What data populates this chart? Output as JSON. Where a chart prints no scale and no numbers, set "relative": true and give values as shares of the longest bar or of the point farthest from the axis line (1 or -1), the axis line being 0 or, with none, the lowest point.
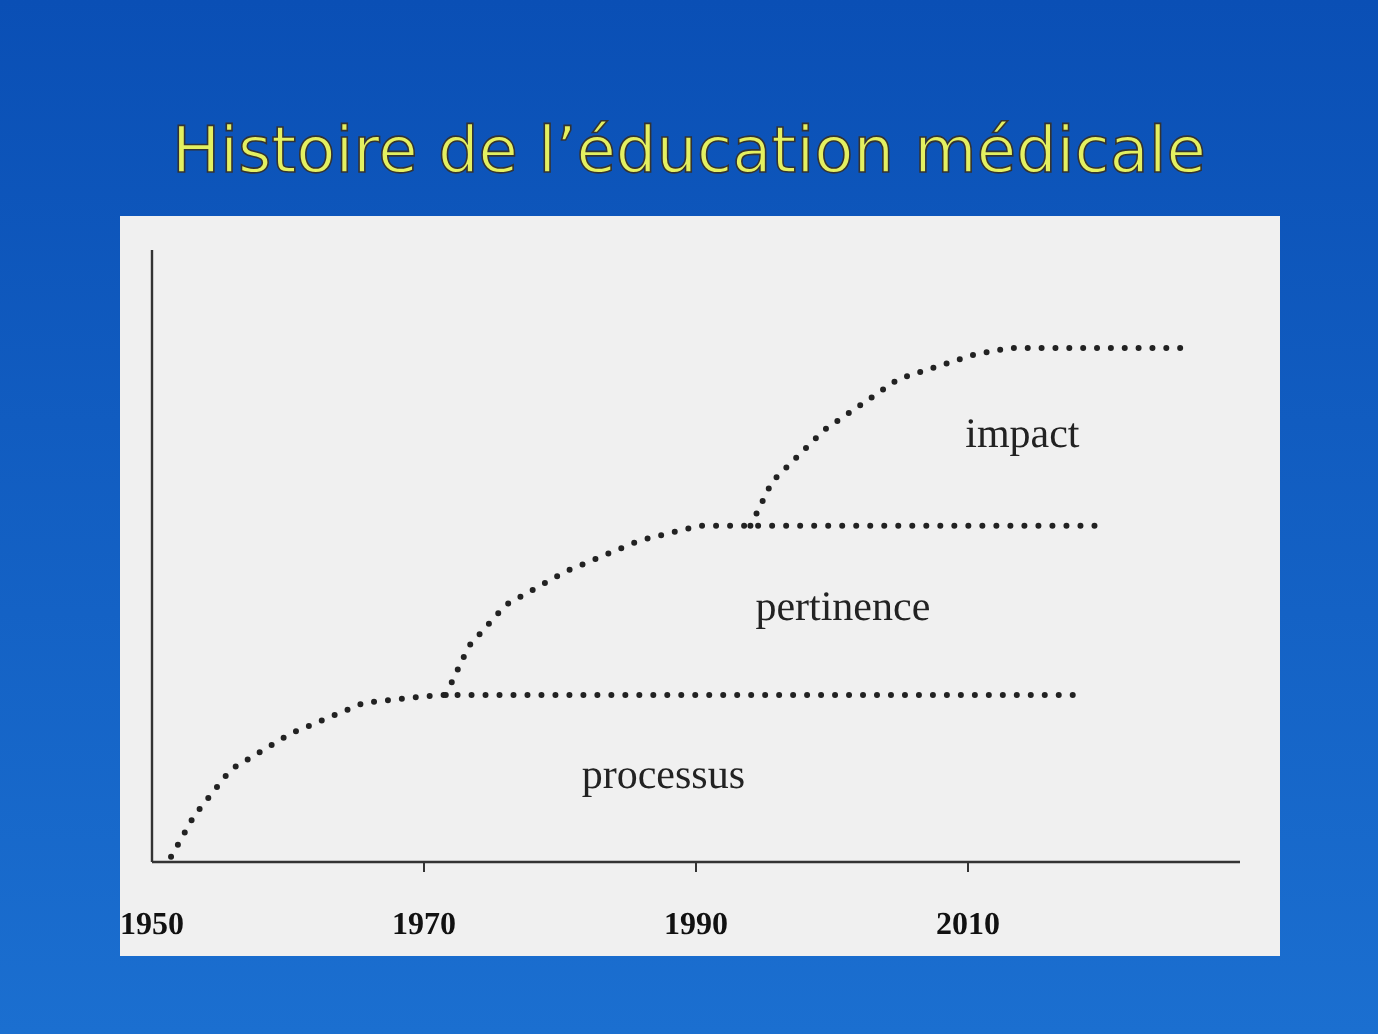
{
  "chart_data": {
    "type": "line",
    "title": "Histoire de l’éducation médicale",
    "relative": true,
    "xlim": [
      1950,
      2030
    ],
    "xticks": [
      1950,
      1970,
      1990,
      2010
    ],
    "line_style": "dotted",
    "legend": false,
    "grid": false,
    "tick_labels": "x",
    "series": [
      {
        "name": "processus",
        "color": "#222222",
        "x": [
          1951.4,
          1953.1,
          1955.8,
          1960.2,
          1965.6,
          1971.1,
          2017.7
        ],
        "values": [
          0.01,
          0.09,
          0.18,
          0.25,
          0.31,
          0.325,
          0.325
        ]
      },
      {
        "name": "pertinence",
        "color": "#222222",
        "x": [
          1971.6,
          1973.3,
          1976,
          1980.4,
          1985.8,
          1990.2,
          2019.3
        ],
        "values": [
          0.325,
          0.42,
          0.5,
          0.565,
          0.625,
          0.654,
          0.654
        ]
      },
      {
        "name": "impact",
        "color": "#222222",
        "x": [
          1994,
          1995.6,
          1999.4,
          2004.9,
          2010.3,
          2013,
          2025.6
        ],
        "values": [
          0.654,
          0.74,
          0.84,
          0.94,
          0.986,
          1,
          1
        ]
      }
    ]
  }
}
